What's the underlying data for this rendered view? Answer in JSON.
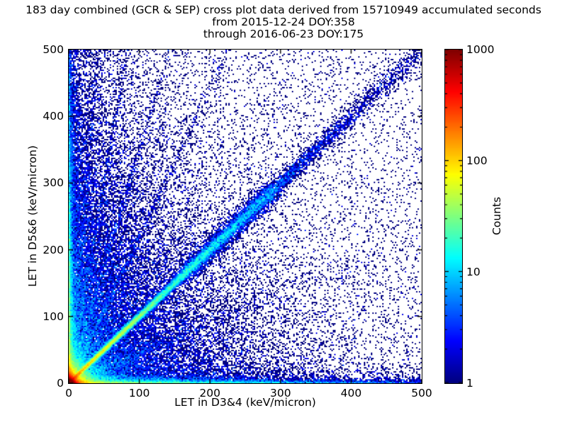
{
  "chart_data": {
    "type": "heatmap",
    "title": "183 day combined (GCR & SEP) cross plot data derived from 15710949 accumulated seconds",
    "subtitle_lines": [
      "from 2015-12-24 DOY:358",
      "through 2016-06-23 DOY:175"
    ],
    "xlabel": "LET in D3&4 (keV/micron)",
    "ylabel": "LET in D5&6 (keV/micron)",
    "xlim": [
      0,
      500
    ],
    "ylim": [
      0,
      500
    ],
    "xticks": [
      0,
      100,
      200,
      300,
      400,
      500
    ],
    "yticks": [
      0,
      100,
      200,
      300,
      400,
      500
    ],
    "grid": false,
    "colormap": "jet",
    "background_color": "#ffffff",
    "colorbar": {
      "label": "Counts",
      "scale": "log",
      "min": 1,
      "max": 1000,
      "ticks": [
        1,
        10,
        100,
        1000
      ]
    },
    "bins": 250,
    "density_model": {
      "seed": 987654321,
      "description": "2D histogram of coincident LET events: intense hot spot (~1000 counts, red/yellow) at origin, bright short diagonal streak to ~60 keV/micron, sparse blue 1:1 diagonal band out to 500 with denser segment near 160-290, dense bands hugging both axes, steep rays fanning up-left from origin, diffuse speckle elsewhere",
      "components": [
        {
          "kind": "exp2d",
          "n": 20000,
          "sx": 2.5,
          "sy": 2.5
        },
        {
          "kind": "exp2d",
          "n": 15000,
          "sx": 7,
          "sy": 7
        },
        {
          "kind": "exp2d",
          "n": 8000,
          "sx": 16,
          "sy": 16
        },
        {
          "kind": "diag",
          "n": 20000,
          "decay": 120,
          "spread0": 1.2,
          "spread1": 7
        },
        {
          "kind": "diagseg",
          "n": 3000,
          "t0": 160,
          "t1": 290,
          "spread": 8
        },
        {
          "kind": "diag",
          "n": 3000,
          "decay": 400,
          "spread0": 3,
          "spread1": 12
        },
        {
          "kind": "band-x",
          "n": 7000,
          "decay": 180,
          "sy": 2.5
        },
        {
          "kind": "band-y",
          "n": 7000,
          "decay": 180,
          "sx": 2.5
        },
        {
          "kind": "band-x",
          "n": 3000,
          "decay": 450,
          "sy": 10
        },
        {
          "kind": "band-y",
          "n": 3000,
          "decay": 450,
          "sx": 10
        },
        {
          "kind": "ray",
          "n": 1000,
          "slope": 2.2,
          "decay": 100,
          "spread": 3
        },
        {
          "kind": "ray",
          "n": 900,
          "slope": 3.5,
          "decay": 80,
          "spread": 3
        },
        {
          "kind": "ray",
          "n": 800,
          "slope": 6,
          "decay": 65,
          "spread": 3
        },
        {
          "kind": "ray",
          "n": 600,
          "slope": 12,
          "decay": 45,
          "spread": 3
        },
        {
          "kind": "ray",
          "n": 800,
          "slope": 0.45,
          "decay": 150,
          "spread": 4
        },
        {
          "kind": "expexp",
          "n": 25000,
          "sx": 110,
          "sy": 150
        },
        {
          "kind": "expexp",
          "n": 9000,
          "sx": 40,
          "sy": 280
        },
        {
          "kind": "uniform",
          "n": 5500
        }
      ]
    }
  }
}
